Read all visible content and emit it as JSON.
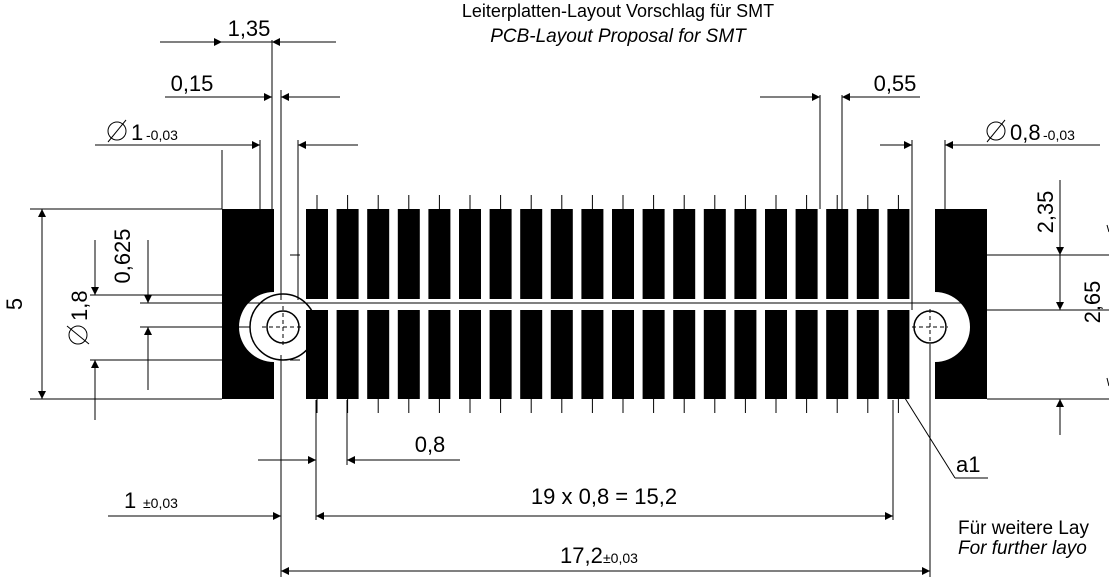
{
  "title": {
    "de": "Leiterplatten-Layout Vorschlag für SMT",
    "en": "PCB-Layout Proposal for SMT"
  },
  "dimensions": {
    "d1_35": "1,35",
    "d0_15": "0,15",
    "dia1": "1",
    "dia1_tol": "-0,03",
    "d0_55": "0,55",
    "dia08": "0,8",
    "dia08_tol": "-0,03",
    "d5": "5",
    "d0_625": "0,625",
    "dia1_8": "1,8",
    "d2_35": "2,35",
    "d2_65": "2,65",
    "d0_8": "0,8",
    "d1": "1",
    "d1_tol": "±0,03",
    "pitch": "19 x 0,8 = 15,2",
    "d17_2": "17,2",
    "d17_2_tol": "±0,03",
    "pin_label": "a1"
  },
  "note": {
    "de": "Für weitere Lay",
    "en": "For further layo"
  },
  "colors": {
    "ink": "#000000",
    "paper": "#ffffff"
  },
  "pads": {
    "count_per_row": 20,
    "rows": 2
  }
}
